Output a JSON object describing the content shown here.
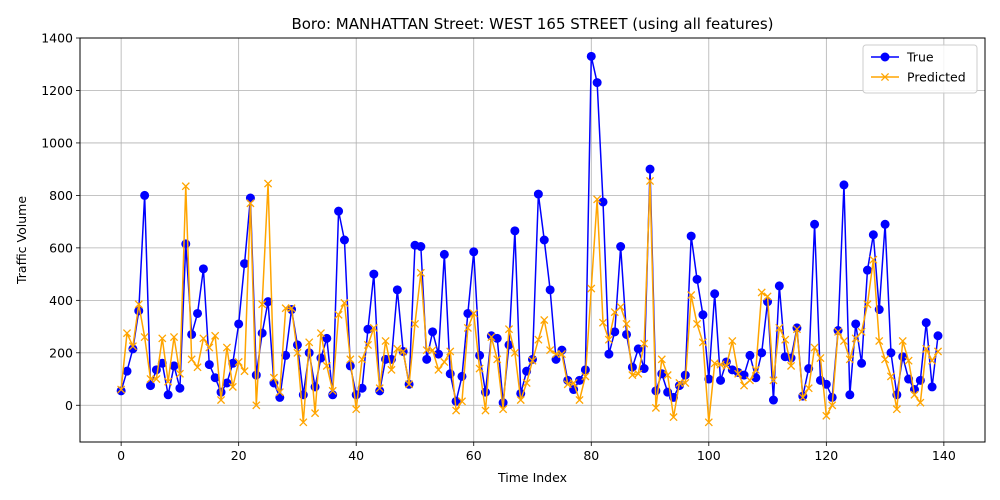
{
  "chart_data": {
    "type": "line",
    "title": "Boro: MANHATTAN Street: WEST 165 STREET (using all features)",
    "xlabel": "Time Index",
    "ylabel": "Traffic Volume",
    "xlim": [
      -7,
      147
    ],
    "ylim": [
      -140,
      1400
    ],
    "xticks": [
      0,
      20,
      40,
      60,
      80,
      100,
      120,
      140
    ],
    "yticks": [
      0,
      200,
      400,
      600,
      800,
      1000,
      1200,
      1400
    ],
    "grid": true,
    "legend_position": "top-right",
    "x": [
      0,
      1,
      2,
      3,
      4,
      5,
      6,
      7,
      8,
      9,
      10,
      11,
      12,
      13,
      14,
      15,
      16,
      17,
      18,
      19,
      20,
      21,
      22,
      23,
      24,
      25,
      26,
      27,
      28,
      29,
      30,
      31,
      32,
      33,
      34,
      35,
      36,
      37,
      38,
      39,
      40,
      41,
      42,
      43,
      44,
      45,
      46,
      47,
      48,
      49,
      50,
      51,
      52,
      53,
      54,
      55,
      56,
      57,
      58,
      59,
      60,
      61,
      62,
      63,
      64,
      65,
      66,
      67,
      68,
      69,
      70,
      71,
      72,
      73,
      74,
      75,
      76,
      77,
      78,
      79,
      80,
      81,
      82,
      83,
      84,
      85,
      86,
      87,
      88,
      89,
      90,
      91,
      92,
      93,
      94,
      95,
      96,
      97,
      98,
      99,
      100,
      101,
      102,
      103,
      104,
      105,
      106,
      107,
      108,
      109,
      110,
      111,
      112,
      113,
      114,
      115,
      116,
      117,
      118,
      119,
      120,
      121,
      122,
      123,
      124,
      125,
      126,
      127,
      128,
      129,
      130,
      131,
      132,
      133,
      134,
      135,
      136,
      137,
      138,
      139
    ],
    "series": [
      {
        "name": "True",
        "color": "#0000ff",
        "marker": "circle",
        "values": [
          55,
          130,
          215,
          360,
          800,
          75,
          135,
          160,
          40,
          150,
          65,
          615,
          270,
          350,
          520,
          155,
          105,
          50,
          85,
          160,
          310,
          540,
          790,
          115,
          275,
          395,
          85,
          30,
          190,
          365,
          230,
          40,
          200,
          70,
          180,
          255,
          40,
          740,
          630,
          150,
          40,
          65,
          290,
          500,
          55,
          175,
          175,
          440,
          205,
          80,
          610,
          605,
          175,
          280,
          195,
          575,
          120,
          15,
          110,
          350,
          585,
          190,
          50,
          265,
          255,
          10,
          230,
          665,
          45,
          130,
          175,
          805,
          630,
          440,
          175,
          210,
          95,
          60,
          95,
          135,
          1330,
          1230,
          775,
          195,
          280,
          605,
          270,
          145,
          215,
          140,
          900,
          55,
          120,
          50,
          30,
          75,
          115,
          645,
          480,
          345,
          100,
          425,
          95,
          165,
          135,
          125,
          115,
          190,
          105,
          200,
          395,
          20,
          455,
          185,
          180,
          295,
          35,
          140,
          690,
          95,
          80,
          30,
          285,
          840,
          40,
          310,
          160,
          515,
          650,
          365,
          690,
          200,
          40,
          185,
          100,
          60,
          95,
          315,
          70,
          265
        ]
      },
      {
        "name": "Predicted",
        "color": "#ffa500",
        "marker": "x",
        "values": [
          60,
          275,
          225,
          385,
          260,
          100,
          100,
          255,
          90,
          260,
          120,
          835,
          175,
          145,
          255,
          220,
          265,
          20,
          220,
          70,
          165,
          130,
          770,
          0,
          385,
          845,
          105,
          50,
          370,
          370,
          200,
          -65,
          240,
          -30,
          275,
          150,
          55,
          345,
          390,
          175,
          -15,
          175,
          230,
          295,
          65,
          245,
          135,
          215,
          205,
          80,
          310,
          505,
          210,
          210,
          135,
          165,
          205,
          -20,
          15,
          295,
          350,
          140,
          -20,
          260,
          175,
          -15,
          290,
          200,
          20,
          85,
          170,
          250,
          325,
          210,
          195,
          195,
          80,
          85,
          20,
          110,
          445,
          785,
          315,
          250,
          355,
          375,
          310,
          115,
          120,
          235,
          855,
          -10,
          175,
          115,
          -45,
          85,
          85,
          420,
          310,
          240,
          -65,
          160,
          155,
          150,
          245,
          120,
          75,
          95,
          135,
          430,
          415,
          95,
          295,
          250,
          150,
          290,
          30,
          65,
          220,
          180,
          -40,
          0,
          280,
          245,
          175,
          255,
          280,
          385,
          555,
          245,
          175,
          110,
          -15,
          245,
          170,
          40,
          10,
          215,
          170,
          205
        ]
      }
    ]
  }
}
